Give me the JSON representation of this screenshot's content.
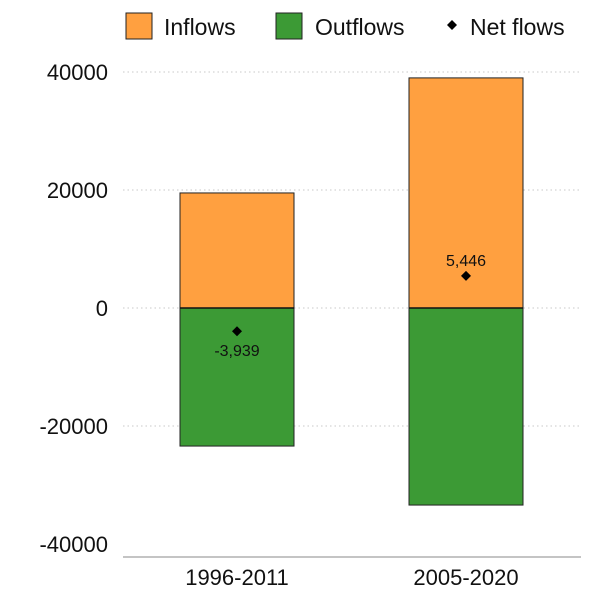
{
  "chart_data": {
    "type": "bar",
    "stacked": true,
    "categories": [
      "1996-2011",
      "2005-2020"
    ],
    "series": [
      {
        "name": "Inflows",
        "kind": "bar",
        "color": "#FFA040",
        "values": [
          19500,
          39000
        ]
      },
      {
        "name": "Outflows",
        "kind": "bar",
        "color": "#3C9A35",
        "values": [
          -23400,
          -33400
        ]
      },
      {
        "name": "Net flows",
        "kind": "marker",
        "color": "#000000",
        "values": [
          -3939,
          5446
        ],
        "labels": [
          "-3,939",
          "5,446"
        ]
      }
    ],
    "ylim": [
      -40000,
      40000
    ],
    "yticks": [
      40000,
      20000,
      0,
      -20000,
      -40000
    ],
    "ytick_labels": [
      "40000",
      "20000",
      "0",
      "-20000",
      "-40000"
    ],
    "grid": true,
    "legend": "top"
  }
}
